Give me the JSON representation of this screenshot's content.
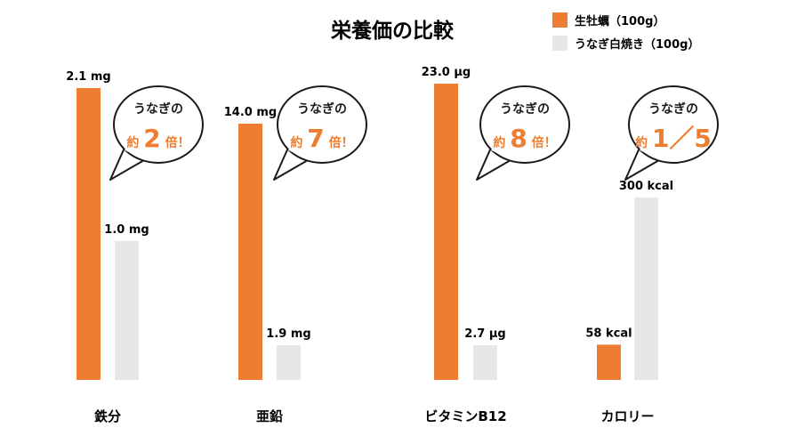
{
  "chart_data": {
    "type": "bar",
    "title": "栄養価の比較",
    "legend_position": "top-right",
    "grid": false,
    "series": [
      {
        "name": "生牡蠣（100g）",
        "color": "#ed7d31",
        "values": [
          2.1,
          14.0,
          23.0,
          58
        ]
      },
      {
        "name": "うなぎ白焼き（100g）",
        "color": "#e7e7e7",
        "values": [
          1.0,
          1.9,
          2.7,
          300
        ]
      }
    ],
    "categories": [
      "鉄分",
      "亜鉛",
      "ビタミンB12",
      "カロリー"
    ],
    "value_labels": [
      [
        "2.1 mg",
        "1.0 mg"
      ],
      [
        "14.0 mg",
        "1.9 mg"
      ],
      [
        "23.0 μg",
        "2.7 μg"
      ],
      [
        "58 kcal",
        "300 kcal"
      ]
    ],
    "annotations": [
      {
        "line1": "うなぎの",
        "prefix": "約",
        "number": "2",
        "suffix": "倍！"
      },
      {
        "line1": "うなぎの",
        "prefix": "約",
        "number": "7",
        "suffix": "倍！"
      },
      {
        "line1": "うなぎの",
        "prefix": "約",
        "number": "8",
        "suffix": "倍！"
      },
      {
        "line1": "うなぎの",
        "prefix": "約",
        "number": "1／5",
        "suffix": ""
      }
    ]
  }
}
